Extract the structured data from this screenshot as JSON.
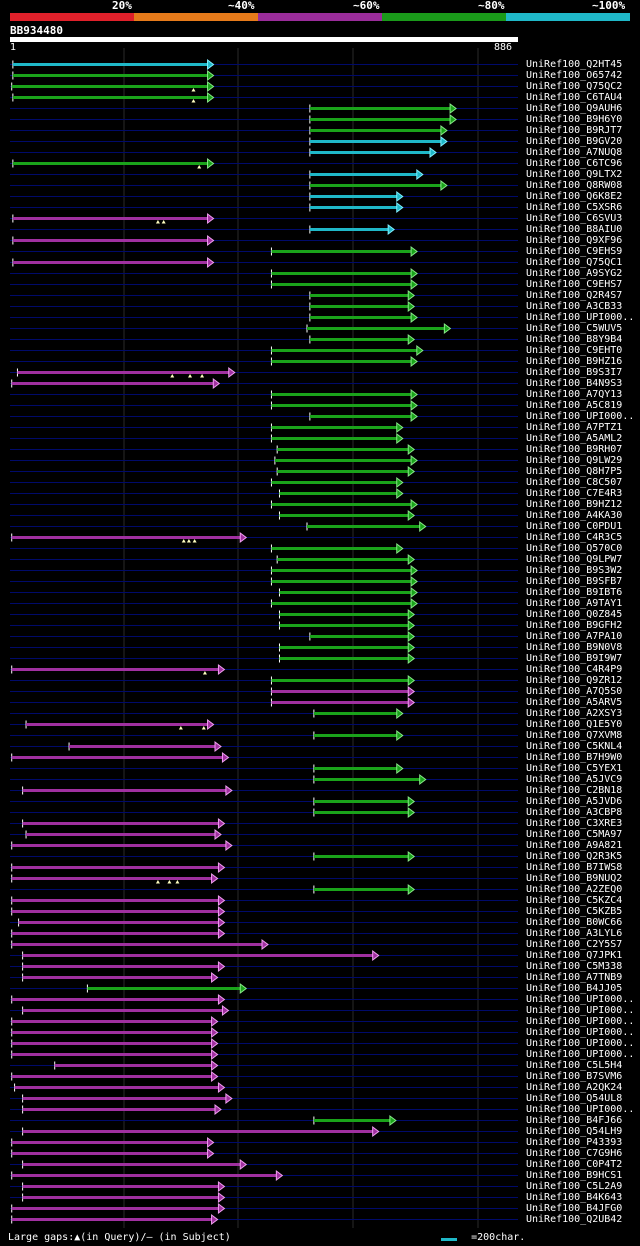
{
  "identity_scale": [
    {
      "label": "20%",
      "color": "#e0202a"
    },
    {
      "label": "~40%",
      "color": "#e67a1a"
    },
    {
      "label": "~60%",
      "color": "#9a2c9a"
    },
    {
      "label": "~80%",
      "color": "#1a9a1a"
    },
    {
      "label": "~100%",
      "color": "#1fb8c8"
    }
  ],
  "query": {
    "name": "BB934480",
    "start": "1",
    "end": "886",
    "length": 886
  },
  "legend": {
    "gaps_text": "Large gaps:▲(in Query)/— (in Subject)",
    "scale_text": "=200char."
  },
  "hits": [
    {
      "name": "UniRef100_Q2HT45",
      "color": "cyan",
      "start": 5,
      "end": 355,
      "gaps": []
    },
    {
      "name": "UniRef100_O65742",
      "color": "green",
      "start": 5,
      "end": 355,
      "gaps": []
    },
    {
      "name": "UniRef100_Q75QC2",
      "color": "green",
      "start": 3,
      "end": 355,
      "gaps": [
        320
      ]
    },
    {
      "name": "UniRef100_C6TAU4",
      "color": "green",
      "start": 5,
      "end": 355,
      "gaps": [
        320
      ]
    },
    {
      "name": "UniRef100_Q9AUH6",
      "color": "green",
      "start": 523,
      "end": 778,
      "gaps": []
    },
    {
      "name": "UniRef100_B9H6Y0",
      "color": "green",
      "start": 523,
      "end": 778,
      "gaps": []
    },
    {
      "name": "UniRef100_B9RJT7",
      "color": "green",
      "start": 523,
      "end": 762,
      "gaps": []
    },
    {
      "name": "UniRef100_B9GV20",
      "color": "cyan",
      "start": 523,
      "end": 762,
      "gaps": []
    },
    {
      "name": "UniRef100_A7NUQ8",
      "color": "cyan",
      "start": 523,
      "end": 743,
      "gaps": []
    },
    {
      "name": "UniRef100_C6TC96",
      "color": "green",
      "start": 5,
      "end": 355,
      "gaps": [
        330
      ]
    },
    {
      "name": "UniRef100_Q9LTX2",
      "color": "cyan",
      "start": 523,
      "end": 720,
      "gaps": []
    },
    {
      "name": "UniRef100_Q8RW08",
      "color": "green",
      "start": 523,
      "end": 762,
      "gaps": []
    },
    {
      "name": "UniRef100_Q6K8E2",
      "color": "cyan",
      "start": 523,
      "end": 685,
      "gaps": []
    },
    {
      "name": "UniRef100_C5XSR6",
      "color": "cyan",
      "start": 523,
      "end": 685,
      "gaps": []
    },
    {
      "name": "UniRef100_C6SVU3",
      "color": "purple",
      "start": 5,
      "end": 355,
      "gaps": [
        258,
        268
      ]
    },
    {
      "name": "UniRef100_B8AIU0",
      "color": "cyan",
      "start": 523,
      "end": 670,
      "gaps": []
    },
    {
      "name": "UniRef100_Q9XF96",
      "color": "purple",
      "start": 5,
      "end": 355,
      "gaps": []
    },
    {
      "name": "UniRef100_C9EHS9",
      "color": "green",
      "start": 456,
      "end": 710,
      "gaps": []
    },
    {
      "name": "UniRef100_Q75QC1",
      "color": "purple",
      "start": 5,
      "end": 355,
      "gaps": []
    },
    {
      "name": "UniRef100_A9SYG2",
      "color": "green",
      "start": 456,
      "end": 710,
      "gaps": []
    },
    {
      "name": "UniRef100_C9EHS7",
      "color": "green",
      "start": 456,
      "end": 710,
      "gaps": []
    },
    {
      "name": "UniRef100_Q2R4S7",
      "color": "green",
      "start": 523,
      "end": 705,
      "gaps": []
    },
    {
      "name": "UniRef100_A3CB33",
      "color": "green",
      "start": 523,
      "end": 705,
      "gaps": []
    },
    {
      "name": "UniRef100_UPI000..",
      "color": "green",
      "start": 523,
      "end": 710,
      "gaps": []
    },
    {
      "name": "UniRef100_C5WUV5",
      "color": "green",
      "start": 518,
      "end": 768,
      "gaps": []
    },
    {
      "name": "UniRef100_B8Y9B4",
      "color": "green",
      "start": 523,
      "end": 705,
      "gaps": []
    },
    {
      "name": "UniRef100_C9EHT0",
      "color": "green",
      "start": 456,
      "end": 720,
      "gaps": []
    },
    {
      "name": "UniRef100_B9HZ16",
      "color": "green",
      "start": 456,
      "end": 710,
      "gaps": []
    },
    {
      "name": "UniRef100_B9S3I7",
      "color": "purple",
      "start": 13,
      "end": 392,
      "gaps": [
        283,
        314,
        335
      ]
    },
    {
      "name": "UniRef100_B4N9S3",
      "color": "purple",
      "start": 3,
      "end": 365,
      "gaps": []
    },
    {
      "name": "UniRef100_A7QY13",
      "color": "green",
      "start": 456,
      "end": 710,
      "gaps": []
    },
    {
      "name": "UniRef100_A5C819",
      "color": "green",
      "start": 456,
      "end": 710,
      "gaps": []
    },
    {
      "name": "UniRef100_UPI000..",
      "color": "green",
      "start": 523,
      "end": 710,
      "gaps": []
    },
    {
      "name": "UniRef100_A7PTZ1",
      "color": "green",
      "start": 456,
      "end": 685,
      "gaps": []
    },
    {
      "name": "UniRef100_A5AML2",
      "color": "green",
      "start": 456,
      "end": 685,
      "gaps": []
    },
    {
      "name": "UniRef100_B9RH07",
      "color": "green",
      "start": 466,
      "end": 705,
      "gaps": []
    },
    {
      "name": "UniRef100_Q9LW29",
      "color": "green",
      "start": 462,
      "end": 710,
      "gaps": []
    },
    {
      "name": "UniRef100_Q8H7P5",
      "color": "green",
      "start": 466,
      "end": 705,
      "gaps": []
    },
    {
      "name": "UniRef100_C8C507",
      "color": "green",
      "start": 456,
      "end": 685,
      "gaps": []
    },
    {
      "name": "UniRef100_C7E4R3",
      "color": "green",
      "start": 470,
      "end": 685,
      "gaps": []
    },
    {
      "name": "UniRef100_B9HZ12",
      "color": "green",
      "start": 456,
      "end": 710,
      "gaps": []
    },
    {
      "name": "UniRef100_A4KA30",
      "color": "green",
      "start": 470,
      "end": 705,
      "gaps": []
    },
    {
      "name": "UniRef100_C0PDU1",
      "color": "green",
      "start": 518,
      "end": 725,
      "gaps": []
    },
    {
      "name": "UniRef100_C4R3C5",
      "color": "purple",
      "start": 3,
      "end": 412,
      "gaps": [
        303,
        312,
        322
      ]
    },
    {
      "name": "UniRef100_Q570C0",
      "color": "green",
      "start": 456,
      "end": 685,
      "gaps": []
    },
    {
      "name": "UniRef100_Q9LPW7",
      "color": "green",
      "start": 466,
      "end": 705,
      "gaps": []
    },
    {
      "name": "UniRef100_B9S3W2",
      "color": "green",
      "start": 456,
      "end": 710,
      "gaps": []
    },
    {
      "name": "UniRef100_B9SFB7",
      "color": "green",
      "start": 456,
      "end": 710,
      "gaps": []
    },
    {
      "name": "UniRef100_B9IBT6",
      "color": "green",
      "start": 470,
      "end": 710,
      "gaps": []
    },
    {
      "name": "UniRef100_A9TAY1",
      "color": "green",
      "start": 456,
      "end": 710,
      "gaps": []
    },
    {
      "name": "UniRef100_Q0Z845",
      "color": "green",
      "start": 470,
      "end": 705,
      "gaps": []
    },
    {
      "name": "UniRef100_B9GFH2",
      "color": "green",
      "start": 470,
      "end": 705,
      "gaps": []
    },
    {
      "name": "UniRef100_A7PA10",
      "color": "green",
      "start": 523,
      "end": 705,
      "gaps": []
    },
    {
      "name": "UniRef100_B9N0V8",
      "color": "green",
      "start": 470,
      "end": 705,
      "gaps": []
    },
    {
      "name": "UniRef100_B9I9W7",
      "color": "green",
      "start": 470,
      "end": 705,
      "gaps": []
    },
    {
      "name": "UniRef100_C4R4P9",
      "color": "purple",
      "start": 3,
      "end": 374,
      "gaps": [
        340
      ]
    },
    {
      "name": "UniRef100_Q9ZR12",
      "color": "green",
      "start": 456,
      "end": 705,
      "gaps": []
    },
    {
      "name": "UniRef100_A7Q5S0",
      "color": "purple",
      "start": 456,
      "end": 705,
      "gaps": []
    },
    {
      "name": "UniRef100_A5ARV5",
      "color": "purple",
      "start": 456,
      "end": 705,
      "gaps": []
    },
    {
      "name": "UniRef100_A2XSY3",
      "color": "green",
      "start": 530,
      "end": 685,
      "gaps": []
    },
    {
      "name": "UniRef100_Q1E5Y0",
      "color": "purple",
      "start": 28,
      "end": 355,
      "gaps": [
        298,
        338
      ]
    },
    {
      "name": "UniRef100_Q7XVM8",
      "color": "green",
      "start": 530,
      "end": 685,
      "gaps": []
    },
    {
      "name": "UniRef100_C5KNL4",
      "color": "purple",
      "start": 103,
      "end": 368,
      "gaps": []
    },
    {
      "name": "UniRef100_B7H9W0",
      "color": "purple",
      "start": 3,
      "end": 381,
      "gaps": []
    },
    {
      "name": "UniRef100_C5YEX1",
      "color": "green",
      "start": 530,
      "end": 685,
      "gaps": []
    },
    {
      "name": "UniRef100_A5JVC9",
      "color": "green",
      "start": 530,
      "end": 725,
      "gaps": []
    },
    {
      "name": "UniRef100_C2BN18",
      "color": "purple",
      "start": 22,
      "end": 387,
      "gaps": []
    },
    {
      "name": "UniRef100_A5JVD6",
      "color": "green",
      "start": 530,
      "end": 705,
      "gaps": []
    },
    {
      "name": "UniRef100_A3CBP8",
      "color": "green",
      "start": 530,
      "end": 705,
      "gaps": []
    },
    {
      "name": "UniRef100_C3XRE3",
      "color": "purple",
      "start": 22,
      "end": 374,
      "gaps": []
    },
    {
      "name": "UniRef100_C5MA97",
      "color": "purple",
      "start": 28,
      "end": 368,
      "gaps": []
    },
    {
      "name": "UniRef100_A9A821",
      "color": "purple",
      "start": 3,
      "end": 387,
      "gaps": []
    },
    {
      "name": "UniRef100_Q2R3K5",
      "color": "green",
      "start": 530,
      "end": 705,
      "gaps": []
    },
    {
      "name": "UniRef100_B7IWS8",
      "color": "purple",
      "start": 3,
      "end": 374,
      "gaps": []
    },
    {
      "name": "UniRef100_B9NUQ2",
      "color": "purple",
      "start": 3,
      "end": 362,
      "gaps": [
        258,
        278,
        292
      ]
    },
    {
      "name": "UniRef100_A2ZEQ0",
      "color": "green",
      "start": 530,
      "end": 705,
      "gaps": []
    },
    {
      "name": "UniRef100_C5KZC4",
      "color": "purple",
      "start": 3,
      "end": 374,
      "gaps": []
    },
    {
      "name": "UniRef100_C5KZB5",
      "color": "purple",
      "start": 3,
      "end": 374,
      "gaps": []
    },
    {
      "name": "UniRef100_B0WC66",
      "color": "purple",
      "start": 15,
      "end": 374,
      "gaps": []
    },
    {
      "name": "UniRef100_A3LYL6",
      "color": "purple",
      "start": 3,
      "end": 374,
      "gaps": []
    },
    {
      "name": "UniRef100_C2Y5S7",
      "color": "purple",
      "start": 3,
      "end": 450,
      "gaps": []
    },
    {
      "name": "UniRef100_Q7JPK1",
      "color": "purple",
      "start": 22,
      "end": 643,
      "gaps": []
    },
    {
      "name": "UniRef100_C5M338",
      "color": "purple",
      "start": 22,
      "end": 374,
      "gaps": []
    },
    {
      "name": "UniRef100_A7TNB9",
      "color": "purple",
      "start": 22,
      "end": 362,
      "gaps": []
    },
    {
      "name": "UniRef100_B4JJ05",
      "color": "green",
      "start": 135,
      "end": 412,
      "gaps": []
    },
    {
      "name": "UniRef100_UPI000..",
      "color": "purple",
      "start": 3,
      "end": 374,
      "gaps": []
    },
    {
      "name": "UniRef100_UPI000..",
      "color": "purple",
      "start": 22,
      "end": 381,
      "gaps": []
    },
    {
      "name": "UniRef100_UPI000..",
      "color": "purple",
      "start": 3,
      "end": 362,
      "gaps": []
    },
    {
      "name": "UniRef100_UPI000..",
      "color": "purple",
      "start": 3,
      "end": 362,
      "gaps": []
    },
    {
      "name": "UniRef100_UPI000..",
      "color": "purple",
      "start": 3,
      "end": 362,
      "gaps": []
    },
    {
      "name": "UniRef100_UPI000..",
      "color": "purple",
      "start": 3,
      "end": 362,
      "gaps": []
    },
    {
      "name": "UniRef100_C5L5H4",
      "color": "purple",
      "start": 78,
      "end": 362,
      "gaps": []
    },
    {
      "name": "UniRef100_B7SVM6",
      "color": "purple",
      "start": 3,
      "end": 362,
      "gaps": []
    },
    {
      "name": "UniRef100_A2QK24",
      "color": "purple",
      "start": 8,
      "end": 374,
      "gaps": []
    },
    {
      "name": "UniRef100_Q54UL8",
      "color": "purple",
      "start": 22,
      "end": 387,
      "gaps": []
    },
    {
      "name": "UniRef100_UPI000..",
      "color": "purple",
      "start": 22,
      "end": 368,
      "gaps": []
    },
    {
      "name": "UniRef100_B4FJ66",
      "color": "green",
      "start": 530,
      "end": 673,
      "gaps": []
    },
    {
      "name": "UniRef100_Q54LH9",
      "color": "purple",
      "start": 22,
      "end": 643,
      "gaps": []
    },
    {
      "name": "UniRef100_P43393",
      "color": "purple",
      "start": 3,
      "end": 355,
      "gaps": []
    },
    {
      "name": "UniRef100_C7G9H6",
      "color": "purple",
      "start": 3,
      "end": 355,
      "gaps": []
    },
    {
      "name": "UniRef100_C0P4T2",
      "color": "purple",
      "start": 22,
      "end": 412,
      "gaps": []
    },
    {
      "name": "UniRef100_B9HCS1",
      "color": "purple",
      "start": 3,
      "end": 475,
      "gaps": []
    },
    {
      "name": "UniRef100_C5L2A9",
      "color": "purple",
      "start": 22,
      "end": 374,
      "gaps": []
    },
    {
      "name": "UniRef100_B4K643",
      "color": "purple",
      "start": 22,
      "end": 374,
      "gaps": []
    },
    {
      "name": "UniRef100_B4JFG0",
      "color": "purple",
      "start": 3,
      "end": 374,
      "gaps": []
    },
    {
      "name": "UniRef100_Q2UB42",
      "color": "purple",
      "start": 3,
      "end": 362,
      "gaps": []
    }
  ]
}
